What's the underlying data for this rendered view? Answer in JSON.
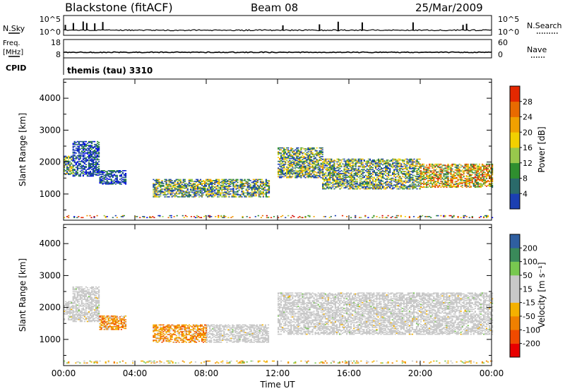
{
  "header": {
    "station": "Blackstone (fitACF)",
    "beam": "Beam 08",
    "date": "25/Mar/2009"
  },
  "sky_panel": {
    "left_label": "N.Sky",
    "right_label": "N.Search",
    "left_ticks": [
      "10^5",
      "10^0"
    ],
    "right_ticks": [
      "10^5",
      "10^0"
    ]
  },
  "freq_panel": {
    "left_label_1": "Freq.",
    "left_label_2": "[MHz]",
    "right_label": "Nave",
    "left_ticks": [
      "18",
      "8"
    ],
    "right_ticks": [
      "60",
      "0"
    ]
  },
  "cpid": {
    "label": "CPID",
    "text": "themis (tau) 3310"
  },
  "colors": {
    "ground_scatter": "#c8c8c8",
    "power_scale": [
      "#0000ee",
      "#1b3fb2",
      "#2a6a6a",
      "#2f8f2f",
      "#98c84c",
      "#f2d000",
      "#f0a000",
      "#e86a00",
      "#e42800",
      "#cc0000"
    ],
    "velocity_scale": [
      "#e80000",
      "#f04a00",
      "#f08000",
      "#f5b100",
      "#c8c8c8",
      "#c8c8c8",
      "#78c850",
      "#3a8a5a",
      "#2f5fa0",
      "#1020c0"
    ]
  },
  "power_colorbar": {
    "label": "Power [dB]",
    "ticks": [
      "4",
      "8",
      "12",
      "16",
      "20",
      "24",
      "28"
    ]
  },
  "velocity_colorbar": {
    "label": "Velocity [m s⁻¹]",
    "ticks": [
      "-200",
      "-100",
      "-50",
      "-15",
      "15",
      "50",
      "100",
      "200"
    ]
  },
  "chart_data": [
    {
      "type": "heatmap",
      "name": "power",
      "xlabel": "Time UT",
      "ylabel": "Slant Range [km]",
      "xlim": [
        0,
        24
      ],
      "ylim": [
        180,
        4600
      ],
      "xticks": [
        "00:00",
        "04:00",
        "08:00",
        "12:00",
        "16:00",
        "20:00",
        "00:00"
      ],
      "yticks": [
        "1000",
        "2000",
        "3000",
        "4000"
      ],
      "ytick_values": [
        1000,
        2000,
        3000,
        4000
      ],
      "colorbar": {
        "label": "Power [dB]",
        "range": [
          0,
          30
        ]
      },
      "regions": [
        {
          "t": [
            0.0,
            0.5
          ],
          "r": [
            1600,
            2200
          ],
          "level": "mid"
        },
        {
          "t": [
            0.5,
            2.0
          ],
          "r": [
            1550,
            2650
          ],
          "level": "low"
        },
        {
          "t": [
            2.0,
            3.5
          ],
          "r": [
            1300,
            1750
          ],
          "level": "low"
        },
        {
          "t": [
            5.0,
            11.5
          ],
          "r": [
            900,
            1450
          ],
          "level": "mid"
        },
        {
          "t": [
            12.0,
            14.5
          ],
          "r": [
            1500,
            2450
          ],
          "level": "mid"
        },
        {
          "t": [
            14.5,
            20.0
          ],
          "r": [
            1150,
            2100
          ],
          "level": "mid"
        },
        {
          "t": [
            20.0,
            24.0
          ],
          "r": [
            1200,
            1950
          ],
          "level": "high"
        },
        {
          "t": [
            0.0,
            24.0
          ],
          "r": [
            250,
            330
          ],
          "level": "mixed"
        }
      ]
    },
    {
      "type": "heatmap",
      "name": "velocity",
      "xlabel": "Time UT",
      "ylabel": "Slant Range [km]",
      "xlim": [
        0,
        24
      ],
      "ylim": [
        180,
        4600
      ],
      "xticks": [
        "00:00",
        "04:00",
        "08:00",
        "12:00",
        "16:00",
        "20:00",
        "00:00"
      ],
      "yticks": [
        "1000",
        "2000",
        "3000",
        "4000"
      ],
      "ytick_values": [
        1000,
        2000,
        3000,
        4000
      ],
      "colorbar": {
        "label": "Velocity [m s⁻¹]",
        "range": [
          -200,
          200
        ]
      },
      "regions": [
        {
          "t": [
            0.0,
            0.5
          ],
          "r": [
            1600,
            2200
          ],
          "class": "ground"
        },
        {
          "t": [
            0.5,
            2.0
          ],
          "r": [
            1550,
            2650
          ],
          "class": "ground"
        },
        {
          "t": [
            2.0,
            3.5
          ],
          "r": [
            1300,
            1750
          ],
          "class": "negative"
        },
        {
          "t": [
            5.0,
            8.0
          ],
          "r": [
            900,
            1450
          ],
          "class": "negative"
        },
        {
          "t": [
            8.0,
            11.5
          ],
          "r": [
            900,
            1450
          ],
          "class": "ground"
        },
        {
          "t": [
            12.0,
            24.0
          ],
          "r": [
            1150,
            2450
          ],
          "class": "ground"
        },
        {
          "t": [
            0.0,
            24.0
          ],
          "r": [
            250,
            330
          ],
          "class": "mixed"
        }
      ]
    }
  ]
}
